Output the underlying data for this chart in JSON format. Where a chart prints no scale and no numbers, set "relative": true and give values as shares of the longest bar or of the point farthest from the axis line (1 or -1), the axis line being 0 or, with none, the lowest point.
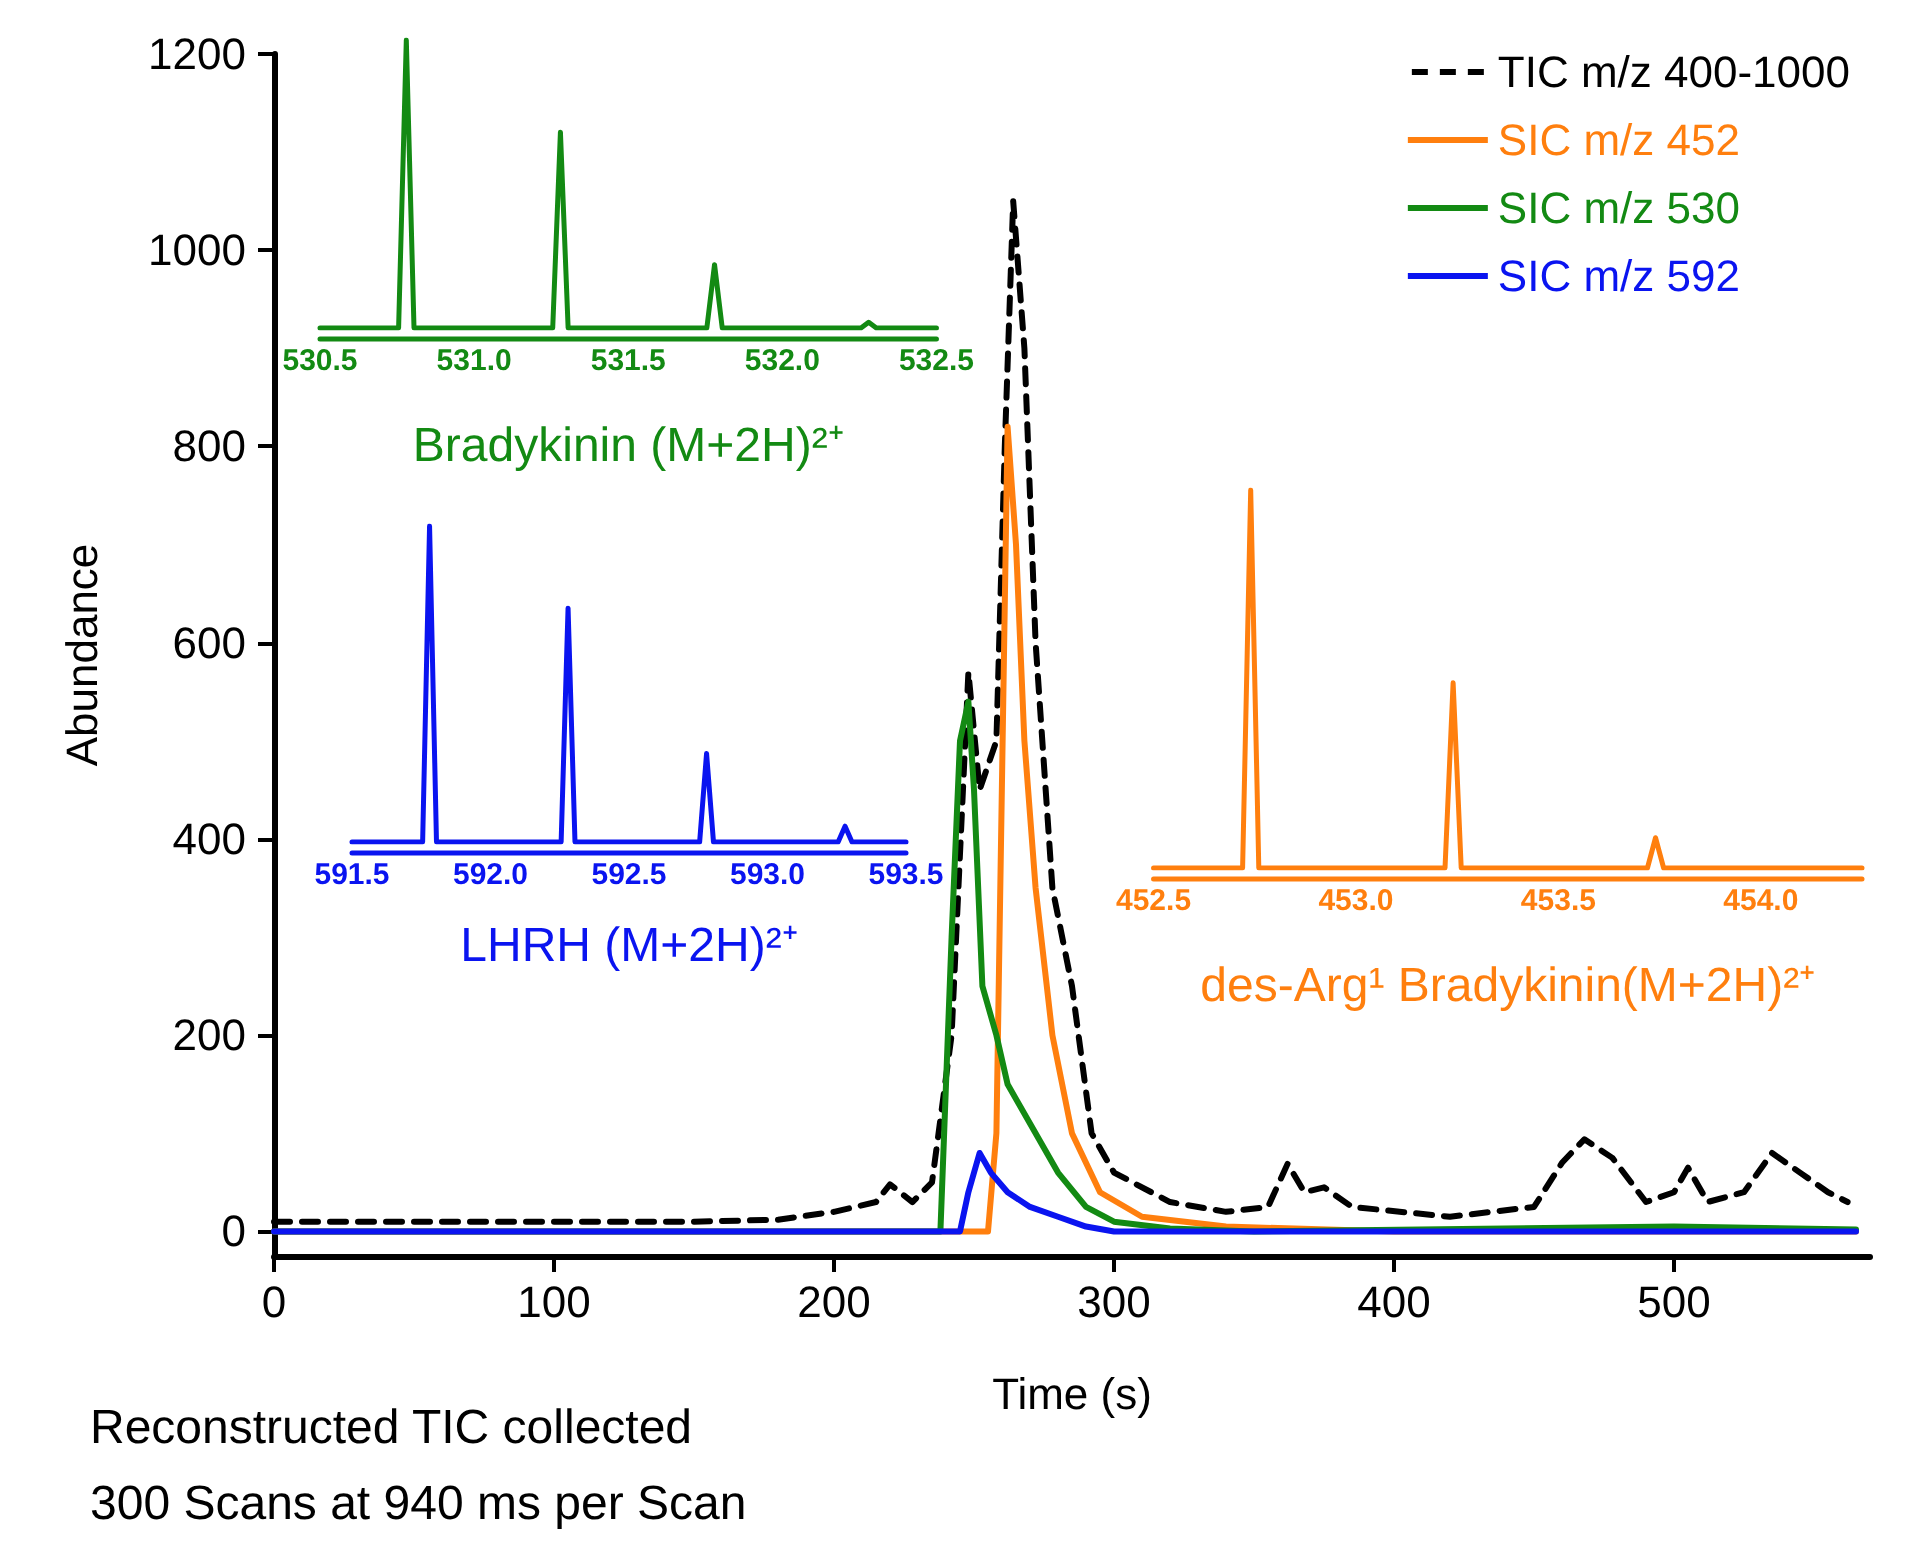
{
  "chart_data": [
    {
      "type": "line",
      "xlabel": "Time (s)",
      "ylabel": "Abundance",
      "xlim": [
        0,
        570
      ],
      "xticks": [
        0,
        100,
        200,
        300,
        400,
        500
      ],
      "ylim": [
        -25,
        1200
      ],
      "yticks": [
        0,
        200,
        400,
        600,
        800,
        1000,
        1200
      ],
      "legend": "top right",
      "marker": "none",
      "annotations": [
        "Reconstructed TIC collected",
        "300 Scans at 940 ms per Scan"
      ],
      "series": [
        {
          "name": "TIC m/z 400-1000",
          "color": "#000000",
          "line_style": "dashed",
          "x": [
            0,
            50,
            100,
            150,
            180,
            200,
            215,
            220,
            228,
            235,
            242,
            248,
            252,
            258,
            261,
            264,
            268,
            272,
            278,
            285,
            292,
            300,
            320,
            340,
            355,
            362,
            368,
            375,
            385,
            420,
            450,
            460,
            468,
            478,
            490,
            500,
            505,
            512,
            525,
            535,
            545,
            555,
            562
          ],
          "values": [
            10,
            10,
            10,
            10,
            12,
            20,
            30,
            48,
            30,
            50,
            200,
            570,
            450,
            500,
            800,
            1050,
            900,
            600,
            350,
            250,
            100,
            60,
            30,
            20,
            25,
            69,
            40,
            45,
            25,
            15,
            25,
            70,
            94,
            75,
            30,
            40,
            65,
            30,
            40,
            80,
            60,
            40,
            30
          ]
        },
        {
          "name": "SIC m/z 452",
          "color": "#ff7f0e",
          "line_style": "solid",
          "x": [
            0,
            255,
            258,
            262,
            265,
            268,
            272,
            278,
            285,
            295,
            310,
            340,
            400,
            565
          ],
          "values": [
            0,
            0,
            100,
            820,
            700,
            500,
            350,
            200,
            100,
            40,
            15,
            5,
            0,
            0
          ]
        },
        {
          "name": "SIC m/z 530",
          "color": "#138a13",
          "line_style": "solid",
          "x": [
            0,
            238,
            242,
            245,
            248,
            250,
            253,
            258,
            262,
            270,
            280,
            290,
            300,
            320,
            350,
            500,
            565
          ],
          "values": [
            0,
            0,
            300,
            500,
            540,
            450,
            250,
            200,
            150,
            110,
            60,
            25,
            10,
            3,
            0,
            5,
            2
          ]
        },
        {
          "name": "SIC m/z 592",
          "color": "#0a14f0",
          "line_style": "solid",
          "x": [
            0,
            245,
            248,
            252,
            256,
            262,
            270,
            280,
            290,
            300,
            565
          ],
          "values": [
            0,
            0,
            40,
            80,
            60,
            40,
            25,
            15,
            5,
            0,
            0
          ]
        }
      ]
    },
    {
      "type": "line",
      "relative": true,
      "xlabel": "Bradykinin (M+2H)²⁺",
      "xlim": [
        530.5,
        532.5
      ],
      "xticks": [
        {
          "value": 530.5,
          "label": "530.5"
        },
        {
          "value": 531,
          "label": "531.0"
        },
        {
          "value": 531.5,
          "label": "531.5"
        },
        {
          "value": 532,
          "label": "532.0"
        },
        {
          "value": 532.5,
          "label": "532.5"
        }
      ],
      "series": [
        {
          "color": "#138a13",
          "x": [
            530.5,
            530.755,
            530.78,
            530.805,
            531.255,
            531.28,
            531.305,
            531.755,
            531.78,
            531.805,
            532.255,
            532.28,
            532.305,
            532.5
          ],
          "values": [
            0,
            0,
            1,
            0,
            0,
            0.68,
            0,
            0,
            0.22,
            0,
            0,
            0.02,
            0,
            0
          ]
        }
      ]
    },
    {
      "type": "line",
      "relative": true,
      "xlabel": "LHRH (M+2H)²⁺",
      "xlim": [
        591.5,
        593.5
      ],
      "xticks": [
        {
          "value": 591.5,
          "label": "591.5"
        },
        {
          "value": 592,
          "label": "592.0"
        },
        {
          "value": 592.5,
          "label": "592.5"
        },
        {
          "value": 593,
          "label": "593.0"
        },
        {
          "value": 593.5,
          "label": "593.5"
        }
      ],
      "series": [
        {
          "color": "#0a14f0",
          "x": [
            591.5,
            591.755,
            591.78,
            591.805,
            592.255,
            592.28,
            592.305,
            592.755,
            592.78,
            592.805,
            593.255,
            593.28,
            593.305,
            593.5
          ],
          "values": [
            0,
            0,
            1,
            0,
            0,
            0.74,
            0,
            0,
            0.28,
            0,
            0,
            0.05,
            0,
            0
          ]
        }
      ]
    },
    {
      "type": "line",
      "relative": true,
      "xlabel": "des-Arg¹ Bradykinin(M+2H)²⁺",
      "xlim": [
        452.5,
        454.25
      ],
      "xticks": [
        {
          "value": 452.5,
          "label": "452.5"
        },
        {
          "value": 453,
          "label": "453.0"
        },
        {
          "value": 453.5,
          "label": "453.5"
        },
        {
          "value": 454,
          "label": "454.0"
        }
      ],
      "series": [
        {
          "color": "#ff7f0e",
          "x": [
            452.5,
            452.72,
            452.74,
            452.76,
            453.22,
            453.24,
            453.26,
            453.72,
            453.74,
            453.76,
            454.25
          ],
          "values": [
            0,
            0,
            1,
            0,
            0,
            0.49,
            0,
            0,
            0.08,
            0,
            0
          ]
        }
      ]
    }
  ]
}
